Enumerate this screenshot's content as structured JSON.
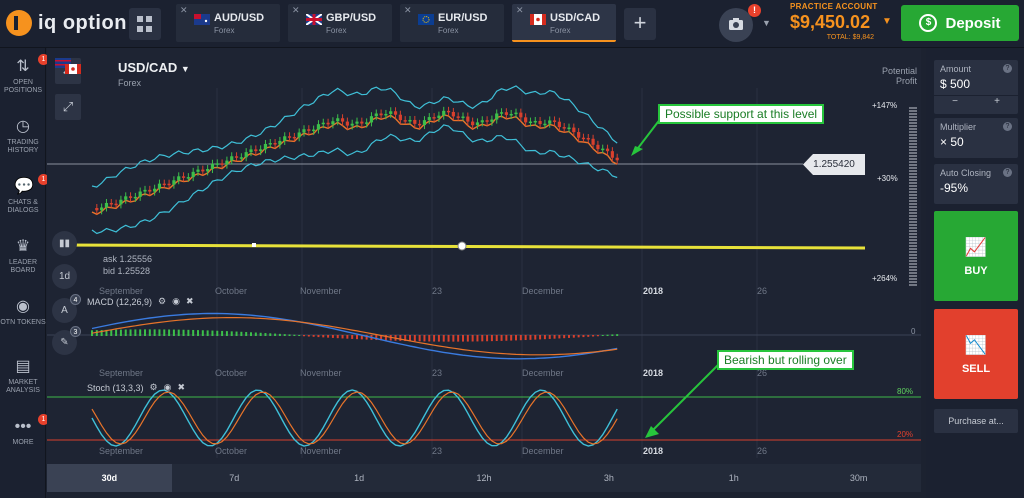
{
  "brand": {
    "name": "iq option"
  },
  "tabs": [
    {
      "pair": "AUD/USD",
      "type": "Forex"
    },
    {
      "pair": "GBP/USD",
      "type": "Forex"
    },
    {
      "pair": "EUR/USD",
      "type": "Forex"
    },
    {
      "pair": "USD/CAD",
      "type": "Forex",
      "active": true
    }
  ],
  "account": {
    "label": "PRACTICE ACCOUNT",
    "balance": "$9,450.02",
    "total": "TOTAL: $9,842",
    "notification_badge": "!"
  },
  "deposit": {
    "label": "Deposit"
  },
  "sidebar": [
    {
      "icon": "open-positions-icon",
      "label": "OPEN POSITIONS",
      "badge": "1"
    },
    {
      "icon": "trading-history-icon",
      "label": "TRADING HISTORY"
    },
    {
      "icon": "chats-icon",
      "label": "CHATS & DIALOGS",
      "badge": "1"
    },
    {
      "icon": "leaderboard-icon",
      "label": "LEADER BOARD"
    },
    {
      "icon": "otn-tokens-icon",
      "label": "OTN TOKENS"
    },
    {
      "icon": "market-analysis-icon",
      "label": "MARKET ANALYSIS"
    },
    {
      "icon": "more-icon",
      "label": "MORE",
      "badge": "1"
    }
  ],
  "chart_header": {
    "pair": "USD/CAD",
    "type": "Forex",
    "potential_profit": "Potential Profit"
  },
  "price": {
    "current": "1.255420",
    "ask": "ask 1.25556",
    "bid": "bid 1.25528"
  },
  "callouts": {
    "support": "Possible support at this level",
    "bearish": "Bearish but rolling over"
  },
  "profit_scale": {
    "upper": "+147%",
    "mid": "+30%",
    "lower": "+264%"
  },
  "indicators": {
    "macd": {
      "label": "MACD (12,26,9)",
      "zero": "0"
    },
    "stoch": {
      "label": "Stoch (13,3,3)",
      "high": "80%",
      "low": "20%"
    }
  },
  "tool_buttons": [
    {
      "icon": "chart-type-icon",
      "label": ""
    },
    {
      "icon": "interval-icon",
      "label": "1d"
    },
    {
      "icon": "indicators-icon",
      "label": "",
      "badge": "4"
    },
    {
      "icon": "drawing-tools-icon",
      "label": "",
      "badge": "3"
    }
  ],
  "x_axis": {
    "main": [
      "September",
      "October",
      "November",
      "23",
      "December",
      "2018",
      "26"
    ],
    "lower": [
      "September",
      "October",
      "November",
      "23",
      "December",
      "2018",
      "26"
    ]
  },
  "timeframes": [
    "30d",
    "7d",
    "1d",
    "12h",
    "3h",
    "1h",
    "30m"
  ],
  "active_timeframe": "30d",
  "right_panel": {
    "amount_label": "Amount",
    "amount_value": "$ 500",
    "minus": "−",
    "plus": "+",
    "multiplier_label": "Multiplier",
    "multiplier_value": "× 50",
    "auto_closing_label": "Auto Closing",
    "auto_closing_value": "-95%",
    "buy_label": "BUY",
    "sell_label": "SELL",
    "purchase_label": "Purchase at..."
  },
  "colors": {
    "accent": "#f6921e",
    "buy": "#27a834",
    "sell": "#e2402d",
    "callout_border": "#27c53c",
    "bollinger": "#3fc0d8",
    "ma": "#e8742a",
    "support_line": "#e8e23a"
  }
}
